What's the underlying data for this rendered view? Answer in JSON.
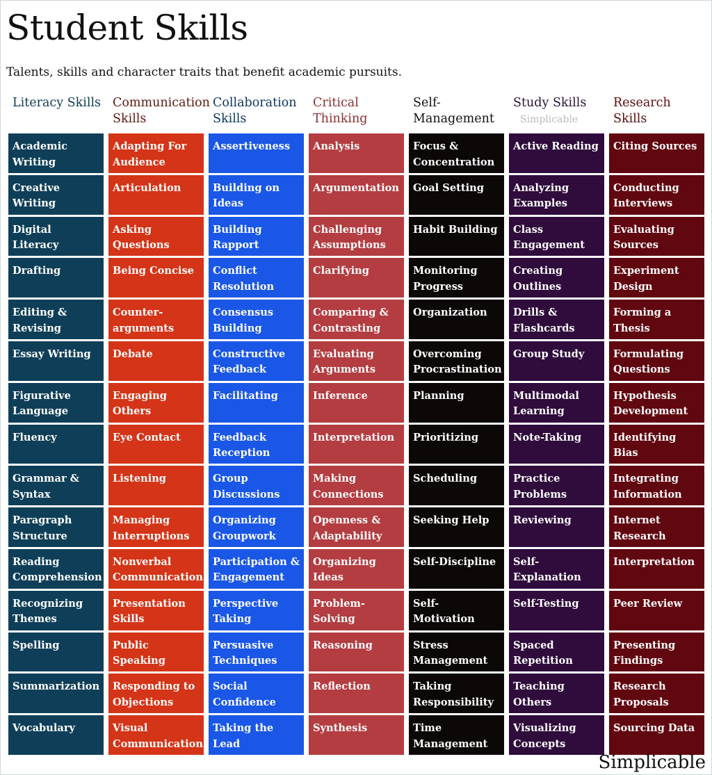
{
  "title": "Student Skills",
  "subtitle": "Talents, skills and character traits that benefit academic pursuits.",
  "watermark": "Simplicable",
  "brand": "Simplicable",
  "columns": [
    {
      "heading": "Literacy Skills",
      "heading_color": "#0e3b52",
      "cell_color": "#0f3f58",
      "items": [
        "Academic Writing",
        "Creative Writing",
        "Digital Literacy",
        "Drafting",
        "Editing & Revising",
        "Essay Writing",
        "Figurative Language",
        "Fluency",
        "Grammar & Syntax",
        "Paragraph Structure",
        "Reading Comprehension",
        "Recognizing Themes",
        "Spelling",
        "Summarization",
        "Vocabulary"
      ]
    },
    {
      "heading": "Communication Skills",
      "heading_color": "#5c1a10",
      "cell_color": "#d43417",
      "items": [
        "Adapting For Audience",
        "Articulation",
        "Asking Questions",
        "Being Concise",
        "Counter-arguments",
        "Debate",
        "Engaging Others",
        "Eye Contact",
        "Listening",
        "Managing Interruptions",
        "Nonverbal Communication",
        "Presentation Skills",
        "Public Speaking",
        "Responding to Objections",
        "Visual Communication"
      ]
    },
    {
      "heading": "Collaboration Skills",
      "heading_color": "#0d3560",
      "cell_color": "#1a57e6",
      "items": [
        "Assertiveness",
        "Building on Ideas",
        "Building Rapport",
        "Conflict Resolution",
        "Consensus Building",
        "Constructive Feedback",
        "Facilitating",
        "Feedback Reception",
        "Group Discussions",
        "Organizing Groupwork",
        "Participation & Engagement",
        "Perspective Taking",
        "Persuasive Techniques",
        "Social Confidence",
        "Taking the Lead"
      ]
    },
    {
      "heading": "Critical Thinking",
      "heading_color": "#8c2e30",
      "cell_color": "#b33d41",
      "items": [
        "Analysis",
        "Argumentation",
        "Challenging Assumptions",
        "Clarifying",
        "Comparing & Contrasting",
        "Evaluating Arguments",
        "Inference",
        "Interpretation",
        "Making Connections",
        "Openness & Adaptability",
        "Organizing Ideas",
        "Problem-Solving",
        "Reasoning",
        "Reflection",
        "Synthesis"
      ]
    },
    {
      "heading": "Self-Management",
      "heading_color": "#111111",
      "cell_color": "#0b0807",
      "items": [
        "Focus & Concentration",
        "Goal Setting",
        "Habit Building",
        "Monitoring Progress",
        "Organization",
        "Overcoming Procrastination",
        "Planning",
        "Prioritizing",
        "Scheduling",
        "Seeking Help",
        "Self-Discipline",
        "Self-Motivation",
        "Stress Management",
        "Taking Responsibility",
        "Time Management"
      ]
    },
    {
      "heading": "Study Skills",
      "heading_color": "#2a1338",
      "cell_color": "#2f0c3c",
      "items": [
        "Active Reading",
        "Analyzing Examples",
        "Class Engagement",
        "Creating Outlines",
        "Drills & Flashcards",
        "Group Study",
        "Multimodal Learning",
        "Note-Taking",
        "Practice Problems",
        "Reviewing",
        "Self-Explanation",
        "Self-Testing",
        "Spaced Repetition",
        "Teaching Others",
        "Visualizing Concepts"
      ]
    },
    {
      "heading": "Research Skills",
      "heading_color": "#5a0c0c",
      "cell_color": "#610710",
      "items": [
        "Citing Sources",
        "Conducting Interviews",
        "Evaluating Sources",
        "Experiment Design",
        "Forming a Thesis",
        "Formulating Questions",
        "Hypothesis Development",
        "Identifying Bias",
        "Integrating Information",
        "Internet Research",
        "Interpretation",
        "Peer Review",
        "Presenting Findings",
        "Research Proposals",
        "Sourcing Data"
      ]
    }
  ]
}
